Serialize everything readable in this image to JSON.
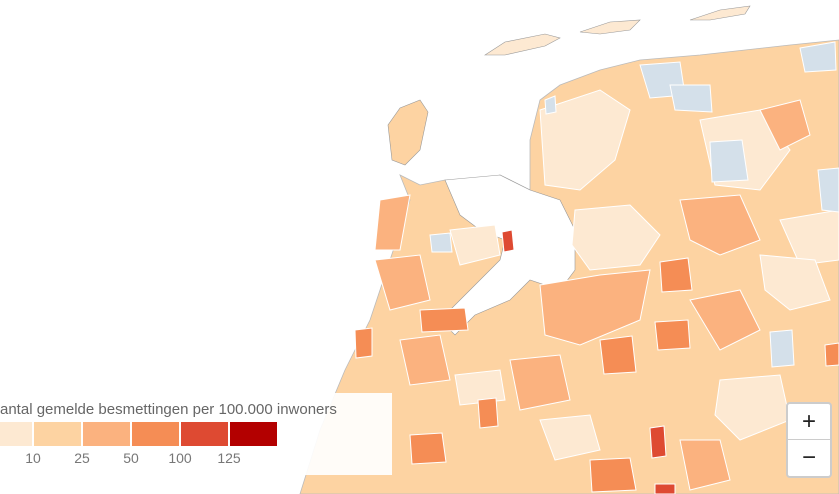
{
  "legend": {
    "title": "antal gemelde besmettingen per 100.000 inwoners",
    "colors": [
      "#fde9d2",
      "#fdd3a2",
      "#fbb27f",
      "#f58d55",
      "#de4a32",
      "#b30000"
    ],
    "labels": [
      10,
      25,
      50,
      100,
      125
    ]
  },
  "controls": {
    "zoom_in": "+",
    "zoom_out": "−"
  }
}
